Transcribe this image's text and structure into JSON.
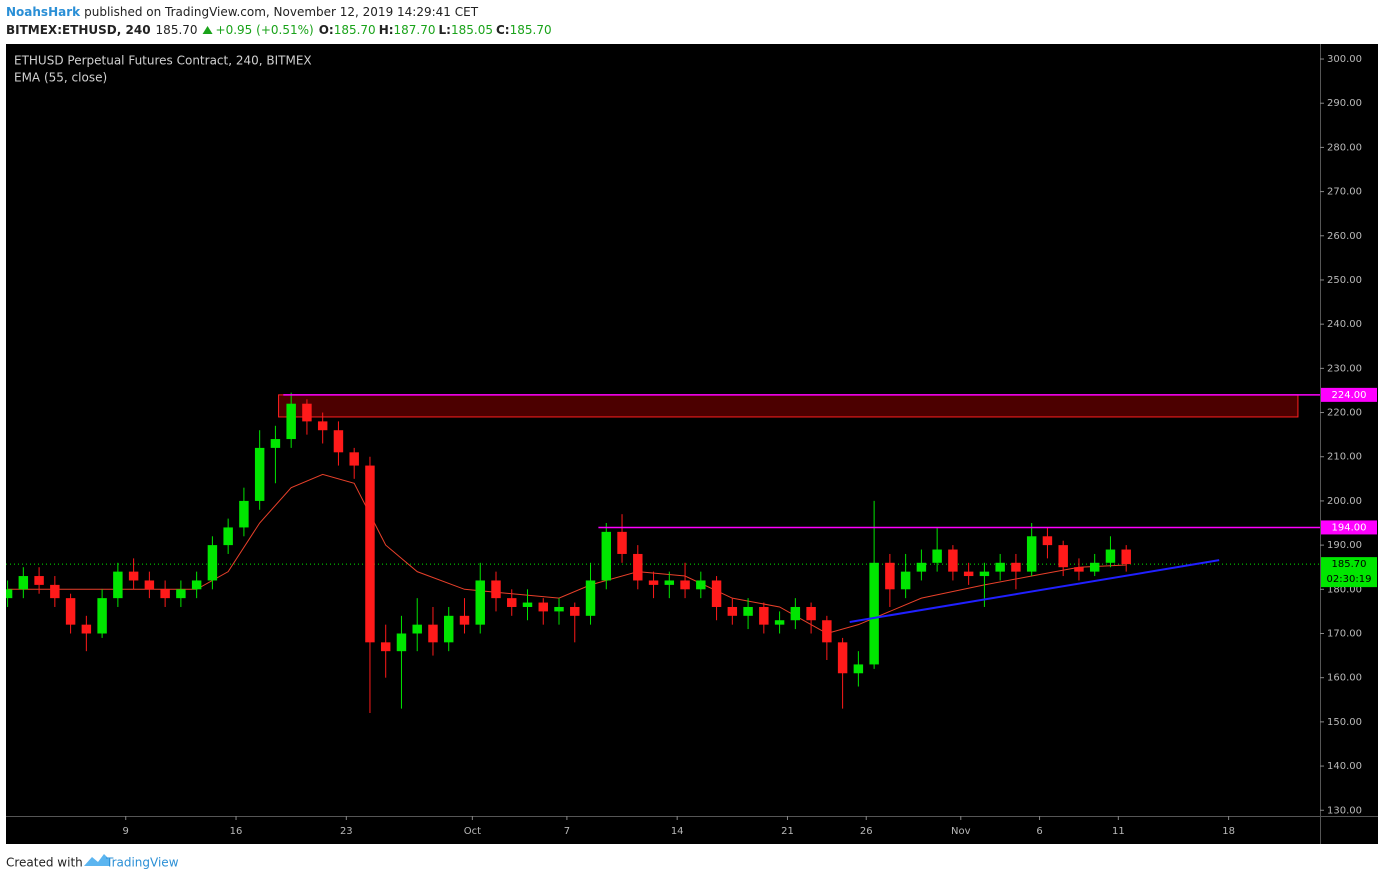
{
  "header": {
    "author": "NoahsHark",
    "published": "published on TradingView.com, November 12, 2019 14:29:41 CET",
    "symbol": "BITMEX:ETHUSD, 240",
    "last": "185.70",
    "change": "+0.95 (+0.51%)",
    "o_label": "O:",
    "o": "185.70",
    "h_label": "H:",
    "h": "187.70",
    "l_label": "L:",
    "l": "185.05",
    "c_label": "C:",
    "c": "185.70"
  },
  "chart_data": {
    "type": "candlestick",
    "title": "ETHUSD Perpetual Futures Contract, 240, BITMEX",
    "up_color": "#00e600",
    "down_color": "#ff1a1a",
    "x": [
      0.5,
      1.5,
      2.5,
      3.5,
      4.5,
      5.5,
      6.5,
      7.5,
      8.5,
      9.5,
      10.5,
      11.5,
      12.5,
      13.5,
      14.5,
      15.5,
      16.5,
      17.5,
      18.5,
      19.5,
      20.5,
      21.5,
      22.5,
      23.5,
      24.5,
      25.5,
      26.5,
      27.5,
      28.5,
      29.5,
      30.5,
      31.5,
      32.5,
      33.5,
      34.5,
      35.5,
      36.5,
      37.5,
      38.5,
      39.5,
      40.5,
      41.5,
      42.5,
      43.5,
      44.5,
      45.5,
      46.5,
      47.5,
      48.5,
      49.5,
      50.5,
      51.5,
      52.5,
      53.5,
      54.5,
      55.5,
      56.5,
      57.5,
      58.5,
      59.5,
      60.5,
      61.5,
      62.5,
      63.5,
      64.5,
      65.5,
      66.5,
      67.5,
      68.5,
      69.5,
      70.5,
      71.5
    ],
    "open": [
      178,
      180,
      183,
      181,
      178,
      172,
      170,
      178,
      184,
      182,
      180,
      178,
      180,
      182,
      190,
      194,
      200,
      212,
      214,
      222,
      218,
      216,
      211,
      208,
      168,
      166,
      170,
      172,
      168,
      174,
      172,
      182,
      178,
      176,
      177,
      175,
      176,
      174,
      182,
      193,
      188,
      182,
      181,
      182,
      180,
      182,
      176,
      174,
      176,
      172,
      173,
      176,
      173,
      168,
      161,
      163,
      186,
      180,
      184,
      186,
      189,
      184,
      183,
      184,
      186,
      184,
      192,
      190,
      185,
      184,
      186,
      189
    ],
    "high": [
      182,
      185,
      185,
      183,
      179,
      174,
      180,
      186,
      187,
      184,
      182,
      182,
      184,
      192,
      196,
      203,
      216,
      217,
      224.5,
      223,
      220,
      218,
      212,
      210,
      172,
      174,
      178,
      176,
      176,
      178,
      186,
      184,
      180,
      180,
      178,
      178,
      177,
      186,
      195,
      197,
      190,
      184,
      184,
      186,
      184,
      183,
      178,
      178,
      177,
      175,
      178,
      177,
      174,
      169,
      166,
      200,
      188,
      188,
      189,
      194,
      190,
      186,
      186,
      188,
      188,
      195,
      194,
      191,
      187,
      188,
      192,
      190
    ],
    "low": [
      176,
      178,
      179,
      176,
      170,
      166,
      169,
      176,
      180,
      178,
      176,
      176,
      178,
      180,
      188,
      192,
      198,
      204,
      212,
      215,
      213,
      208,
      205,
      152,
      160,
      153,
      166,
      165,
      166,
      170,
      170,
      175,
      174,
      173,
      172,
      172,
      168,
      172,
      180,
      186,
      180,
      178,
      178,
      178,
      178,
      173,
      172,
      171,
      170,
      170,
      171,
      170,
      164,
      153,
      158,
      162,
      176,
      178,
      182,
      184,
      182,
      181,
      176,
      182,
      180,
      183,
      187,
      183,
      182,
      183,
      185,
      184
    ],
    "close": [
      180,
      183,
      181,
      178,
      172,
      170,
      178,
      184,
      182,
      180,
      178,
      180,
      182,
      190,
      194,
      200,
      212,
      214,
      222,
      218,
      216,
      211,
      208,
      168,
      166,
      170,
      172,
      168,
      174,
      172,
      182,
      178,
      176,
      177,
      175,
      176,
      174,
      182,
      193,
      188,
      182,
      181,
      182,
      180,
      182,
      176,
      174,
      176,
      172,
      173,
      176,
      173,
      168,
      161,
      163,
      186,
      180,
      184,
      186,
      189,
      184,
      183,
      184,
      186,
      184,
      192,
      190,
      185,
      184,
      186,
      189,
      185.7
    ],
    "ema": {
      "name": "EMA (55, close)",
      "color": "#e8402a",
      "x": [
        0.5,
        7.5,
        12.5,
        14.5,
        16.5,
        18.5,
        20.5,
        22.5,
        24.5,
        26.5,
        29.5,
        35.5,
        37.5,
        40.5,
        43.5,
        46.5,
        49.5,
        52.5,
        54.5,
        58.5,
        62.5,
        65.5,
        68.5,
        71.5
      ],
      "values": [
        180,
        180,
        180,
        184,
        195,
        203,
        206,
        204,
        190,
        184,
        180,
        178,
        181,
        184,
        183,
        178,
        176,
        170,
        172,
        178,
        181,
        183,
        185,
        185.5
      ]
    },
    "zone": {
      "x": [
        17.7,
        82.4
      ],
      "y": [
        219,
        224
      ],
      "color": "#8b0000"
    },
    "levels": [
      {
        "value": 224,
        "label": "224.00",
        "x_start": 18,
        "color": "#ff00ff"
      },
      {
        "value": 194,
        "label": "194.00",
        "x_start": 38,
        "color": "#ff00ff"
      }
    ],
    "trendline": {
      "x": [
        53.95,
        77.4
      ],
      "y": [
        172.6,
        186.6
      ],
      "color": "#2020ff"
    },
    "last_price": {
      "value": 185.7,
      "label": "185.70",
      "countdown": "02:30:19",
      "color": "#00e600"
    },
    "xlim": [
      0.4,
      83.8
    ],
    "ylim": [
      128.7,
      303.4
    ],
    "xticks": [
      {
        "value": 8,
        "label": "9"
      },
      {
        "value": 15,
        "label": "16"
      },
      {
        "value": 22,
        "label": "23"
      },
      {
        "value": 30,
        "label": "Oct"
      },
      {
        "value": 36,
        "label": "7"
      },
      {
        "value": 43,
        "label": "14"
      },
      {
        "value": 50,
        "label": "21"
      },
      {
        "value": 55,
        "label": "26"
      },
      {
        "value": 61,
        "label": "Nov"
      },
      {
        "value": 66,
        "label": "6"
      },
      {
        "value": 71,
        "label": "11"
      },
      {
        "value": 78,
        "label": "18"
      }
    ],
    "yticks": [
      {
        "value": 130,
        "label": "130.00"
      },
      {
        "value": 140,
        "label": "140.00"
      },
      {
        "value": 150,
        "label": "150.00"
      },
      {
        "value": 160,
        "label": "160.00"
      },
      {
        "value": 170,
        "label": "170.00"
      },
      {
        "value": 180,
        "label": "180.00"
      },
      {
        "value": 190,
        "label": "190.00"
      },
      {
        "value": 200,
        "label": "200.00"
      },
      {
        "value": 210,
        "label": "210.00"
      },
      {
        "value": 220,
        "label": "220.00"
      },
      {
        "value": 230,
        "label": "230.00"
      },
      {
        "value": 240,
        "label": "240.00"
      },
      {
        "value": 250,
        "label": "250.00"
      },
      {
        "value": 260,
        "label": "260.00"
      },
      {
        "value": 270,
        "label": "270.00"
      },
      {
        "value": 280,
        "label": "280.00"
      },
      {
        "value": 290,
        "label": "290.00"
      },
      {
        "value": 300,
        "label": "300.00"
      }
    ]
  },
  "footer": {
    "created": "Created with",
    "brand": "TradingView"
  }
}
